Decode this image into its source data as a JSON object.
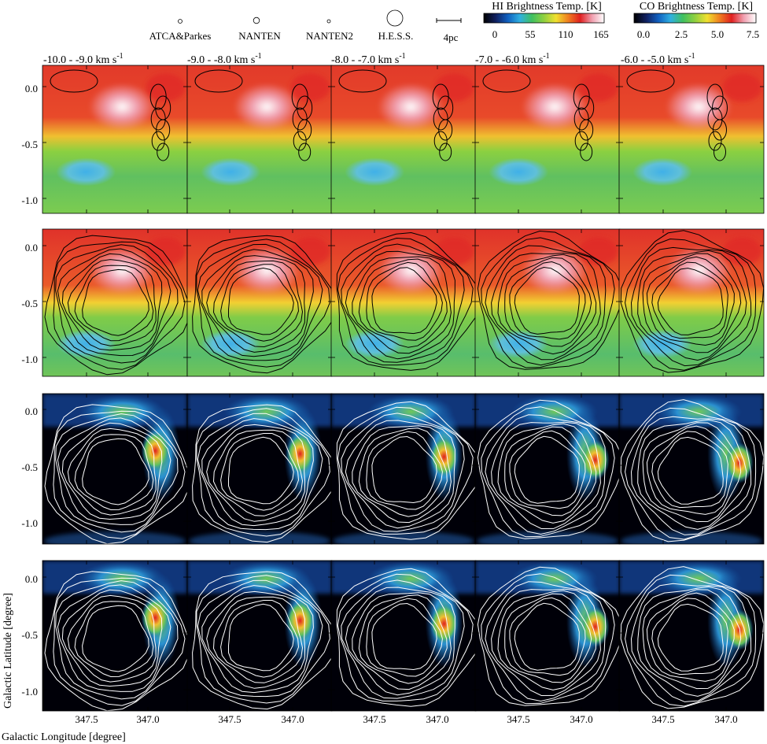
{
  "legend": {
    "beams": [
      {
        "label": "ATCA&Parkes",
        "size": 2.5
      },
      {
        "label": "NANTEN",
        "size": 4
      },
      {
        "label": "NANTEN2",
        "size": 2
      },
      {
        "label": "H.E.S.S.",
        "size": 10
      }
    ],
    "scale_bar_label": "4pc"
  },
  "colorbars": {
    "hi": {
      "title": "HI Brightness Temp. [K]",
      "ticks": [
        "0",
        "55",
        "110",
        "165"
      ],
      "colors": [
        "#000000",
        "#102060",
        "#1060c0",
        "#30b0e0",
        "#40c060",
        "#90d040",
        "#f0e030",
        "#f08020",
        "#e02020",
        "#f0a0b0",
        "#ffffff"
      ]
    },
    "co": {
      "title": "CO Brightness Temp. [K]",
      "ticks": [
        "0.0",
        "2.5",
        "5.0",
        "7.5"
      ],
      "colors": [
        "#000000",
        "#102060",
        "#1060c0",
        "#30b0e0",
        "#40c060",
        "#90d040",
        "#f0e030",
        "#f08020",
        "#e02020",
        "#f0a0b0",
        "#ffffff"
      ]
    }
  },
  "velocity_ranges": [
    "-10.0 -  -9.0 km s",
    "-9.0 -  -8.0 km s",
    "-8.0 -  -7.0 km s",
    "-7.0 -  -6.0 km s",
    "-6.0 -  -5.0 km s"
  ],
  "velocity_unit_sup": "-1",
  "y_ticks": [
    "0.0",
    "-0.5",
    "-1.0"
  ],
  "x_ticks": [
    "347.5",
    "347.0"
  ],
  "xlabel": "Galactic Longitude [degree]",
  "ylabel": "Galactic Latitude [degree]",
  "colors": {
    "contour_dark": "#000000",
    "contour_light": "#ffffff"
  }
}
